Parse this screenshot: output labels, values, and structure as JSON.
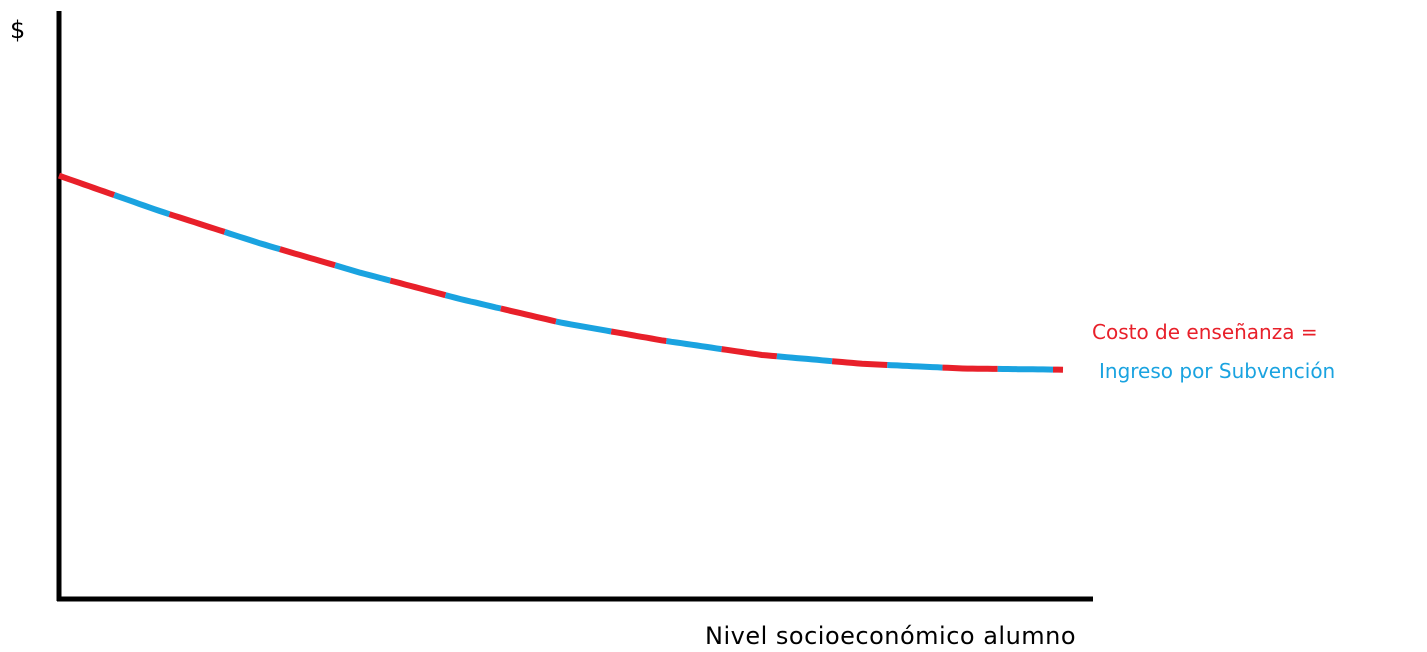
{
  "chart_data": {
    "type": "line",
    "title": "",
    "xlabel": "Nivel socioeconómico alumno",
    "ylabel": "$",
    "grid": false,
    "series": [
      {
        "name": "Costo de enseñanza =",
        "color": "#e8202a",
        "x": [
          0,
          0.1,
          0.2,
          0.3,
          0.4,
          0.5,
          0.6,
          0.7,
          0.8,
          0.9,
          1.0
        ],
        "y": [
          0.72,
          0.66,
          0.605,
          0.555,
          0.51,
          0.47,
          0.44,
          0.415,
          0.4,
          0.392,
          0.39
        ]
      },
      {
        "name": "Ingreso por Subvención",
        "color": "#1aa3e0",
        "x": [
          0,
          0.1,
          0.2,
          0.3,
          0.4,
          0.5,
          0.6,
          0.7,
          0.8,
          0.9,
          1.0
        ],
        "y": [
          0.72,
          0.66,
          0.605,
          0.555,
          0.51,
          0.47,
          0.44,
          0.415,
          0.4,
          0.392,
          0.39
        ]
      }
    ],
    "legend": "right"
  }
}
